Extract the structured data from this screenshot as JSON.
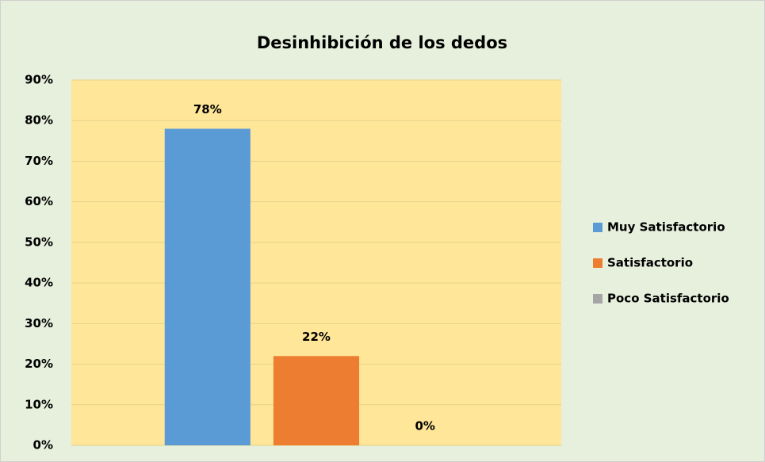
{
  "chart_data": {
    "type": "bar",
    "title": "Desinhibición de los dedos",
    "categories": [
      null
    ],
    "series": [
      {
        "name": "Muy Satisfactorio",
        "color": "#5b9bd5",
        "values": [
          78
        ],
        "value_labels": [
          "78%"
        ]
      },
      {
        "name": "Satisfactorio",
        "color": "#ed7d31",
        "values": [
          22
        ],
        "value_labels": [
          "22%"
        ]
      },
      {
        "name": "Poco Satisfactorio",
        "color": "#a5a5a5",
        "values": [
          0
        ],
        "value_labels": [
          "0%"
        ]
      }
    ],
    "ylim": [
      0,
      90
    ],
    "yticks": [
      {
        "value": 0,
        "label": "0%"
      },
      {
        "value": 10,
        "label": "10%"
      },
      {
        "value": 20,
        "label": "20%"
      },
      {
        "value": 30,
        "label": "30%"
      },
      {
        "value": 40,
        "label": "40%"
      },
      {
        "value": 50,
        "label": "50%"
      },
      {
        "value": 60,
        "label": "60%"
      },
      {
        "value": 70,
        "label": "70%"
      },
      {
        "value": 80,
        "label": "80%"
      },
      {
        "value": 90,
        "label": "90%"
      }
    ],
    "grid": true,
    "legend": "right"
  }
}
